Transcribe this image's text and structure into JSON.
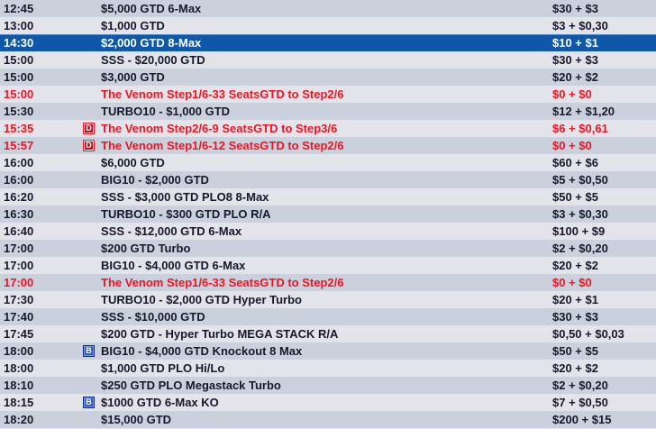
{
  "colors": {
    "row_odd_bg": "#cad1dc",
    "row_even_bg": "#e2e4e9",
    "selected_bg": "#0e57aa",
    "selected_highlight": "#4d85c5",
    "text": "#16182c",
    "selected_text": "#ffffff",
    "red_text": "#ee1424",
    "badge_d_bg": "#c50f1c",
    "badge_b_bg": "#2e5ec2"
  },
  "icons": {
    "d": {
      "name": "d-badge-icon",
      "glyph": "D"
    },
    "b": {
      "name": "b-badge-icon",
      "glyph": "B"
    }
  },
  "rows": [
    {
      "time": "12:45",
      "icon": "",
      "name": "$5,000 GTD 6-Max",
      "buyin": "$30 + $3",
      "red": false,
      "selected": false
    },
    {
      "time": "13:00",
      "icon": "",
      "name": "$1,000 GTD",
      "buyin": "$3 + $0,30",
      "red": false,
      "selected": false
    },
    {
      "time": "14:30",
      "icon": "",
      "name": "$2,000 GTD 8-Max",
      "buyin": "$10 + $1",
      "red": false,
      "selected": true
    },
    {
      "time": "15:00",
      "icon": "",
      "name": "SSS - $20,000 GTD",
      "buyin": "$30 + $3",
      "red": false,
      "selected": false
    },
    {
      "time": "15:00",
      "icon": "",
      "name": "$3,000 GTD",
      "buyin": "$20 + $2",
      "red": false,
      "selected": false
    },
    {
      "time": "15:00",
      "icon": "",
      "name": "The Venom Step1/6-33 SeatsGTD to Step2/6",
      "buyin": "$0 + $0",
      "red": true,
      "selected": false
    },
    {
      "time": "15:30",
      "icon": "",
      "name": "TURBO10 - $1,000 GTD",
      "buyin": "$12 + $1,20",
      "red": false,
      "selected": false
    },
    {
      "time": "15:35",
      "icon": "d",
      "name": "The Venom Step2/6-9 SeatsGTD to Step3/6",
      "buyin": "$6 + $0,61",
      "red": true,
      "selected": false
    },
    {
      "time": "15:57",
      "icon": "d",
      "name": "The Venom Step1/6-12 SeatsGTD to Step2/6",
      "buyin": "$0 + $0",
      "red": true,
      "selected": false
    },
    {
      "time": "16:00",
      "icon": "",
      "name": "$6,000 GTD",
      "buyin": "$60 + $6",
      "red": false,
      "selected": false
    },
    {
      "time": "16:00",
      "icon": "",
      "name": "BIG10 - $2,000 GTD",
      "buyin": "$5 + $0,50",
      "red": false,
      "selected": false
    },
    {
      "time": "16:20",
      "icon": "",
      "name": "SSS - $3,000 GTD PLO8 8-Max",
      "buyin": "$50 + $5",
      "red": false,
      "selected": false
    },
    {
      "time": "16:30",
      "icon": "",
      "name": "TURBO10 - $300 GTD PLO R/A",
      "buyin": "$3 + $0,30",
      "red": false,
      "selected": false
    },
    {
      "time": "16:40",
      "icon": "",
      "name": "SSS - $12,000 GTD 6-Max",
      "buyin": "$100 + $9",
      "red": false,
      "selected": false
    },
    {
      "time": "17:00",
      "icon": "",
      "name": "$200 GTD Turbo",
      "buyin": "$2 + $0,20",
      "red": false,
      "selected": false
    },
    {
      "time": "17:00",
      "icon": "",
      "name": "BIG10 - $4,000 GTD 6-Max",
      "buyin": "$20 + $2",
      "red": false,
      "selected": false
    },
    {
      "time": "17:00",
      "icon": "",
      "name": "The Venom Step1/6-33 SeatsGTD to Step2/6",
      "buyin": "$0 + $0",
      "red": true,
      "selected": false
    },
    {
      "time": "17:30",
      "icon": "",
      "name": "TURBO10 - $2,000 GTD Hyper Turbo",
      "buyin": "$20 + $1",
      "red": false,
      "selected": false
    },
    {
      "time": "17:40",
      "icon": "",
      "name": "SSS - $10,000 GTD",
      "buyin": "$30 + $3",
      "red": false,
      "selected": false
    },
    {
      "time": "17:45",
      "icon": "",
      "name": "$200 GTD - Hyper Turbo MEGA STACK R/A",
      "buyin": "$0,50 + $0,03",
      "red": false,
      "selected": false
    },
    {
      "time": "18:00",
      "icon": "b",
      "name": "BIG10 - $4,000 GTD Knockout 8 Max",
      "buyin": "$50 + $5",
      "red": false,
      "selected": false
    },
    {
      "time": "18:00",
      "icon": "",
      "name": "$1,000 GTD PLO Hi/Lo",
      "buyin": "$20 + $2",
      "red": false,
      "selected": false
    },
    {
      "time": "18:10",
      "icon": "",
      "name": "$250 GTD PLO Megastack Turbo",
      "buyin": "$2 + $0,20",
      "red": false,
      "selected": false
    },
    {
      "time": "18:15",
      "icon": "b",
      "name": "$1000 GTD 6-Max KO",
      "buyin": "$7 + $0,50",
      "red": false,
      "selected": false
    },
    {
      "time": "18:20",
      "icon": "",
      "name": "$15,000 GTD",
      "buyin": "$200 + $15",
      "red": false,
      "selected": false
    }
  ]
}
